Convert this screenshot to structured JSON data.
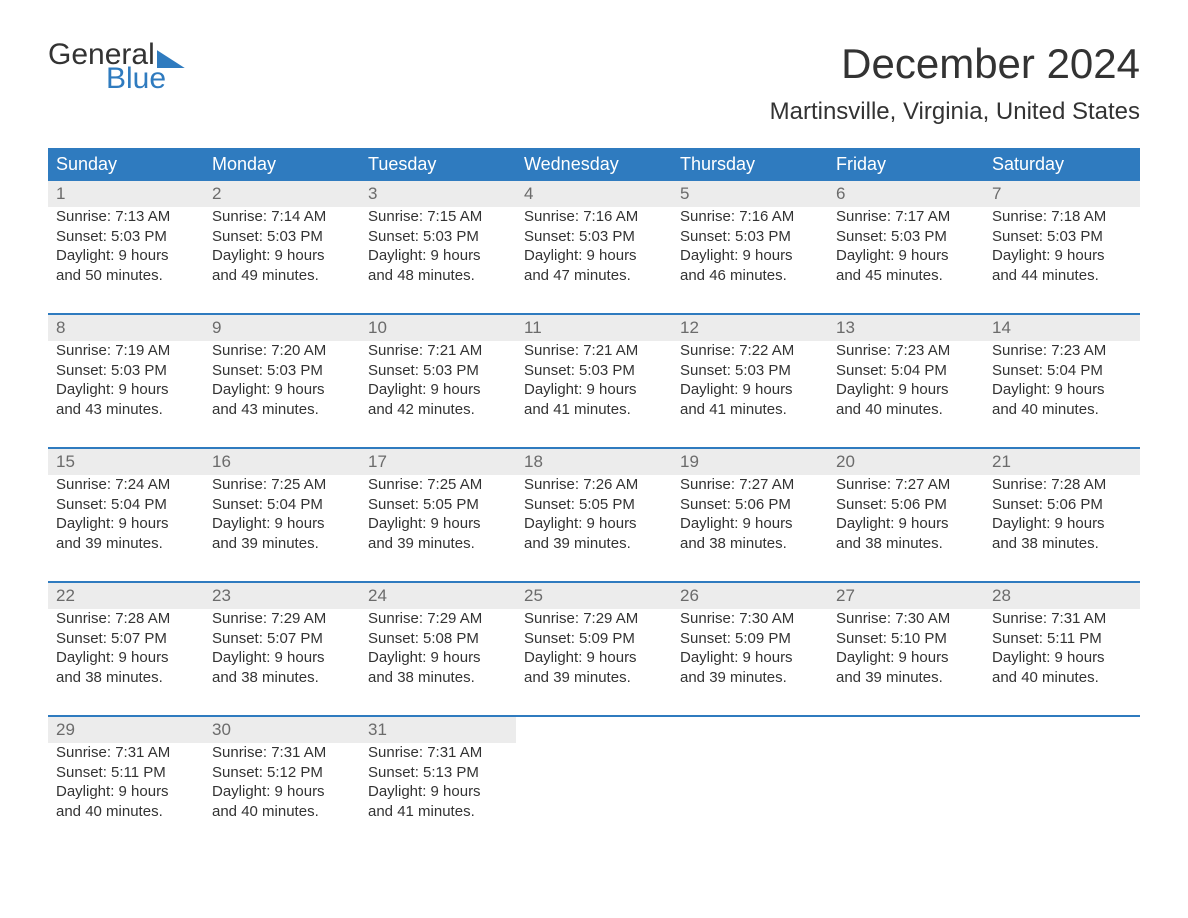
{
  "logo": {
    "line1": "General",
    "line2": "Blue"
  },
  "title": "December 2024",
  "location": "Martinsville, Virginia, United States",
  "colors": {
    "header_bg": "#2f7bbf",
    "header_text": "#ffffff",
    "daynum_bg": "#ececec",
    "daynum_text": "#6b6b6b",
    "body_text": "#333333",
    "page_bg": "#ffffff"
  },
  "weekdays": [
    "Sunday",
    "Monday",
    "Tuesday",
    "Wednesday",
    "Thursday",
    "Friday",
    "Saturday"
  ],
  "weeks": [
    [
      {
        "n": "1",
        "sr": "Sunrise: 7:13 AM",
        "ss": "Sunset: 5:03 PM",
        "d1": "Daylight: 9 hours",
        "d2": "and 50 minutes."
      },
      {
        "n": "2",
        "sr": "Sunrise: 7:14 AM",
        "ss": "Sunset: 5:03 PM",
        "d1": "Daylight: 9 hours",
        "d2": "and 49 minutes."
      },
      {
        "n": "3",
        "sr": "Sunrise: 7:15 AM",
        "ss": "Sunset: 5:03 PM",
        "d1": "Daylight: 9 hours",
        "d2": "and 48 minutes."
      },
      {
        "n": "4",
        "sr": "Sunrise: 7:16 AM",
        "ss": "Sunset: 5:03 PM",
        "d1": "Daylight: 9 hours",
        "d2": "and 47 minutes."
      },
      {
        "n": "5",
        "sr": "Sunrise: 7:16 AM",
        "ss": "Sunset: 5:03 PM",
        "d1": "Daylight: 9 hours",
        "d2": "and 46 minutes."
      },
      {
        "n": "6",
        "sr": "Sunrise: 7:17 AM",
        "ss": "Sunset: 5:03 PM",
        "d1": "Daylight: 9 hours",
        "d2": "and 45 minutes."
      },
      {
        "n": "7",
        "sr": "Sunrise: 7:18 AM",
        "ss": "Sunset: 5:03 PM",
        "d1": "Daylight: 9 hours",
        "d2": "and 44 minutes."
      }
    ],
    [
      {
        "n": "8",
        "sr": "Sunrise: 7:19 AM",
        "ss": "Sunset: 5:03 PM",
        "d1": "Daylight: 9 hours",
        "d2": "and 43 minutes."
      },
      {
        "n": "9",
        "sr": "Sunrise: 7:20 AM",
        "ss": "Sunset: 5:03 PM",
        "d1": "Daylight: 9 hours",
        "d2": "and 43 minutes."
      },
      {
        "n": "10",
        "sr": "Sunrise: 7:21 AM",
        "ss": "Sunset: 5:03 PM",
        "d1": "Daylight: 9 hours",
        "d2": "and 42 minutes."
      },
      {
        "n": "11",
        "sr": "Sunrise: 7:21 AM",
        "ss": "Sunset: 5:03 PM",
        "d1": "Daylight: 9 hours",
        "d2": "and 41 minutes."
      },
      {
        "n": "12",
        "sr": "Sunrise: 7:22 AM",
        "ss": "Sunset: 5:03 PM",
        "d1": "Daylight: 9 hours",
        "d2": "and 41 minutes."
      },
      {
        "n": "13",
        "sr": "Sunrise: 7:23 AM",
        "ss": "Sunset: 5:04 PM",
        "d1": "Daylight: 9 hours",
        "d2": "and 40 minutes."
      },
      {
        "n": "14",
        "sr": "Sunrise: 7:23 AM",
        "ss": "Sunset: 5:04 PM",
        "d1": "Daylight: 9 hours",
        "d2": "and 40 minutes."
      }
    ],
    [
      {
        "n": "15",
        "sr": "Sunrise: 7:24 AM",
        "ss": "Sunset: 5:04 PM",
        "d1": "Daylight: 9 hours",
        "d2": "and 39 minutes."
      },
      {
        "n": "16",
        "sr": "Sunrise: 7:25 AM",
        "ss": "Sunset: 5:04 PM",
        "d1": "Daylight: 9 hours",
        "d2": "and 39 minutes."
      },
      {
        "n": "17",
        "sr": "Sunrise: 7:25 AM",
        "ss": "Sunset: 5:05 PM",
        "d1": "Daylight: 9 hours",
        "d2": "and 39 minutes."
      },
      {
        "n": "18",
        "sr": "Sunrise: 7:26 AM",
        "ss": "Sunset: 5:05 PM",
        "d1": "Daylight: 9 hours",
        "d2": "and 39 minutes."
      },
      {
        "n": "19",
        "sr": "Sunrise: 7:27 AM",
        "ss": "Sunset: 5:06 PM",
        "d1": "Daylight: 9 hours",
        "d2": "and 38 minutes."
      },
      {
        "n": "20",
        "sr": "Sunrise: 7:27 AM",
        "ss": "Sunset: 5:06 PM",
        "d1": "Daylight: 9 hours",
        "d2": "and 38 minutes."
      },
      {
        "n": "21",
        "sr": "Sunrise: 7:28 AM",
        "ss": "Sunset: 5:06 PM",
        "d1": "Daylight: 9 hours",
        "d2": "and 38 minutes."
      }
    ],
    [
      {
        "n": "22",
        "sr": "Sunrise: 7:28 AM",
        "ss": "Sunset: 5:07 PM",
        "d1": "Daylight: 9 hours",
        "d2": "and 38 minutes."
      },
      {
        "n": "23",
        "sr": "Sunrise: 7:29 AM",
        "ss": "Sunset: 5:07 PM",
        "d1": "Daylight: 9 hours",
        "d2": "and 38 minutes."
      },
      {
        "n": "24",
        "sr": "Sunrise: 7:29 AM",
        "ss": "Sunset: 5:08 PM",
        "d1": "Daylight: 9 hours",
        "d2": "and 38 minutes."
      },
      {
        "n": "25",
        "sr": "Sunrise: 7:29 AM",
        "ss": "Sunset: 5:09 PM",
        "d1": "Daylight: 9 hours",
        "d2": "and 39 minutes."
      },
      {
        "n": "26",
        "sr": "Sunrise: 7:30 AM",
        "ss": "Sunset: 5:09 PM",
        "d1": "Daylight: 9 hours",
        "d2": "and 39 minutes."
      },
      {
        "n": "27",
        "sr": "Sunrise: 7:30 AM",
        "ss": "Sunset: 5:10 PM",
        "d1": "Daylight: 9 hours",
        "d2": "and 39 minutes."
      },
      {
        "n": "28",
        "sr": "Sunrise: 7:31 AM",
        "ss": "Sunset: 5:11 PM",
        "d1": "Daylight: 9 hours",
        "d2": "and 40 minutes."
      }
    ],
    [
      {
        "n": "29",
        "sr": "Sunrise: 7:31 AM",
        "ss": "Sunset: 5:11 PM",
        "d1": "Daylight: 9 hours",
        "d2": "and 40 minutes."
      },
      {
        "n": "30",
        "sr": "Sunrise: 7:31 AM",
        "ss": "Sunset: 5:12 PM",
        "d1": "Daylight: 9 hours",
        "d2": "and 40 minutes."
      },
      {
        "n": "31",
        "sr": "Sunrise: 7:31 AM",
        "ss": "Sunset: 5:13 PM",
        "d1": "Daylight: 9 hours",
        "d2": "and 41 minutes."
      },
      null,
      null,
      null,
      null
    ]
  ]
}
